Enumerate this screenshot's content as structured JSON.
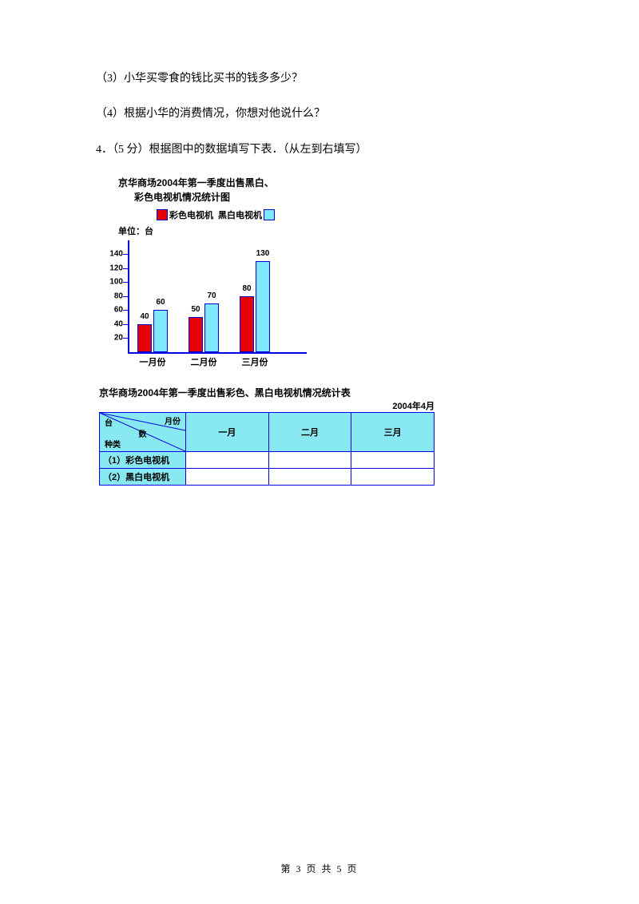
{
  "q3": "（3）小华买零食的钱比买书的钱多多少？",
  "q4": "（4）根据小华的消费情况，你想对他说什么？",
  "q5_prefix": "4．（5 分）根据图中的数据填写下表．（从左到右填写）",
  "chart": {
    "type": "bar",
    "title_l1": "京华商场2004年第一季度出售黑白、",
    "title_l2": "彩色电视机情况统计图",
    "unit": "单位：台",
    "legend": [
      {
        "label": "彩色电视机",
        "color": "#e60000"
      },
      {
        "label": "黑白电视机",
        "color": "#7eeaff"
      }
    ],
    "categories": [
      "一月份",
      "二月份",
      "三月份"
    ],
    "ytick": [
      20,
      40,
      60,
      80,
      100,
      120,
      140
    ],
    "ylim": [
      0,
      160
    ],
    "axis_color": "#0000e6",
    "series": [
      {
        "name": "c",
        "color": "#e60000",
        "values": [
          40,
          50,
          80
        ]
      },
      {
        "name": "b",
        "color": "#7eeaff",
        "values": [
          60,
          70,
          130
        ]
      }
    ],
    "bar_labels": [
      [
        "40",
        "60"
      ],
      [
        "50",
        "70"
      ],
      [
        "80",
        "130"
      ]
    ]
  },
  "table": {
    "title": "京华商场2004年第一季度出售彩色、黑白电视机情况统计表",
    "date": "2004年4月",
    "diag": {
      "top": "月份",
      "mid": "数",
      "bottom": "种类",
      "topleft": "台"
    },
    "columns": [
      "一月",
      "二月",
      "三月"
    ],
    "rows": [
      {
        "label": "（1）彩色电视机",
        "cells": [
          "",
          "",
          ""
        ]
      },
      {
        "label": "（2）黑白电视机",
        "cells": [
          "",
          "",
          ""
        ]
      }
    ],
    "header_bg": "#89e9f3",
    "border_color": "#0000e6"
  },
  "footer": "第 3 页 共 5 页"
}
